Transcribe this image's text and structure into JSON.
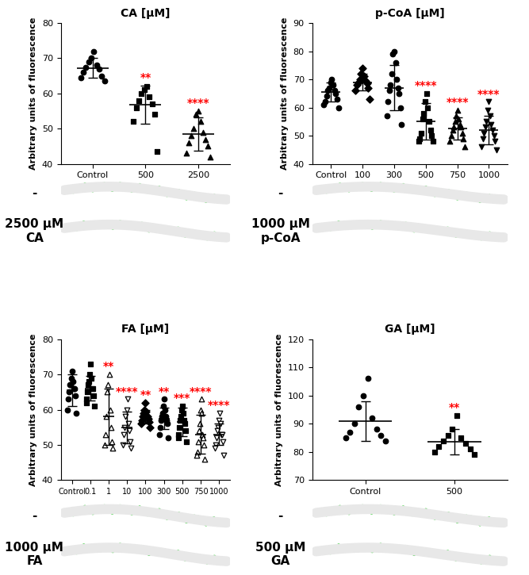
{
  "chart_data": [
    {
      "type": "scatter",
      "title": "CA [μM]",
      "y_label": "Arbitrary units of fluorescence",
      "ylim": [
        40,
        80
      ],
      "yticks": [
        40,
        50,
        60,
        70,
        80
      ],
      "image_labels": [
        "-",
        "2500 μM\nCA"
      ],
      "groups": [
        {
          "name": "Control",
          "marker": "circle",
          "points": [
            72,
            70,
            69,
            68,
            67.5,
            67,
            66,
            65,
            64.5,
            63.5
          ],
          "mean": 67.2,
          "sd": 2.8
        },
        {
          "name": "500",
          "marker": "square",
          "points": [
            62,
            61,
            60,
            59,
            58,
            57,
            56,
            54,
            52,
            43.5
          ],
          "mean": 56.8,
          "sd": 5.5,
          "significance": "**"
        },
        {
          "name": "2500",
          "marker": "triangle_up",
          "points": [
            55,
            54,
            52,
            50,
            49,
            48,
            47,
            46,
            45,
            43,
            42
          ],
          "mean": 48.5,
          "sd": 4.8,
          "significance": "****"
        }
      ]
    },
    {
      "type": "scatter",
      "title": "p-CoA [μM]",
      "y_label": "Arbitrary units of fluorescence",
      "ylim": [
        40,
        90
      ],
      "yticks": [
        40,
        50,
        60,
        70,
        80,
        90
      ],
      "image_labels": [
        "-",
        "1000 μM\np-CoA"
      ],
      "groups": [
        {
          "name": "Control",
          "marker": "circle",
          "points": [
            70,
            69,
            68,
            67,
            66,
            66,
            65,
            64,
            63,
            62,
            61,
            60
          ],
          "mean": 65.5,
          "sd": 3.5
        },
        {
          "name": "100",
          "marker": "diamond",
          "points": [
            74,
            72,
            71,
            70,
            69.5,
            69,
            68.5,
            68,
            67,
            66,
            63
          ],
          "mean": 69,
          "sd": 3
        },
        {
          "name": "300",
          "marker": "circle",
          "points": [
            80,
            79,
            76,
            72,
            70,
            68,
            67,
            66,
            65,
            62,
            60,
            57,
            54
          ],
          "mean": 67,
          "sd": 8
        },
        {
          "name": "500",
          "marker": "square",
          "points": [
            65,
            62,
            60,
            58,
            56,
            55,
            52,
            51,
            50,
            49,
            48,
            48
          ],
          "mean": 55,
          "sd": 6.5,
          "significance": "****"
        },
        {
          "name": "750",
          "marker": "triangle_up",
          "points": [
            59,
            57,
            56,
            55,
            54,
            53,
            53,
            52,
            51,
            50,
            49,
            48,
            46
          ],
          "mean": 52.5,
          "sd": 4,
          "significance": "****"
        },
        {
          "name": "1000",
          "marker": "triangle_down",
          "points": [
            62,
            59,
            57,
            55,
            54,
            53,
            52,
            51,
            50,
            49,
            48,
            46,
            45
          ],
          "mean": 52,
          "sd": 5,
          "significance": "****"
        }
      ]
    },
    {
      "type": "scatter",
      "title": "FA [μM]",
      "y_label": "Arbitrary units of fluorescence",
      "ylim": [
        40,
        80
      ],
      "yticks": [
        40,
        50,
        60,
        70,
        80
      ],
      "image_labels": [
        "-",
        "1000 μM\nFA"
      ],
      "groups": [
        {
          "name": "Control",
          "marker": "circle",
          "points": [
            71,
            69,
            68,
            67,
            67,
            66,
            66,
            65,
            64,
            63,
            60,
            59
          ],
          "mean": 65.5,
          "sd": 4.5
        },
        {
          "name": "0.1",
          "marker": "square",
          "points": [
            73,
            70,
            69,
            68,
            67,
            66,
            66,
            65,
            64,
            63,
            62,
            61
          ],
          "mean": 66,
          "sd": 3.5
        },
        {
          "name": "1",
          "marker": "triangle_up_open",
          "points": [
            70,
            67,
            65,
            60,
            58,
            55,
            53,
            51,
            50,
            49
          ],
          "mean": 58,
          "sd": 8,
          "significance": "**"
        },
        {
          "name": "10",
          "marker": "triangle_down_open",
          "points": [
            63,
            60,
            58,
            56,
            55,
            54,
            53,
            51,
            50,
            49
          ],
          "mean": 55,
          "sd": 4.5,
          "significance": "****"
        },
        {
          "name": "100",
          "marker": "diamond",
          "points": [
            62,
            60,
            59.5,
            59,
            58,
            58,
            57.5,
            57,
            56.5,
            56,
            55
          ],
          "mean": 58,
          "sd": 2,
          "significance": "**"
        },
        {
          "name": "300",
          "marker": "circle",
          "points": [
            63,
            61,
            60,
            59,
            58,
            58,
            57,
            57,
            56,
            55,
            53,
            52
          ],
          "mean": 57.5,
          "sd": 3,
          "significance": "**"
        },
        {
          "name": "500",
          "marker": "square",
          "points": [
            61,
            60,
            59,
            58,
            57,
            57,
            56,
            55,
            54,
            53,
            52,
            51
          ],
          "mean": 56.5,
          "sd": 4,
          "significance": "***"
        },
        {
          "name": "750",
          "marker": "triangle_up_open",
          "points": [
            63,
            60,
            59,
            56,
            54,
            53,
            52,
            51,
            50,
            48,
            47,
            46
          ],
          "mean": 53,
          "sd": 5.5,
          "significance": "****"
        },
        {
          "name": "1000",
          "marker": "triangle_down_open",
          "points": [
            59,
            57,
            56,
            55,
            54,
            53,
            53,
            52,
            51,
            50,
            49,
            47
          ],
          "mean": 53,
          "sd": 3,
          "significance": "****"
        }
      ]
    },
    {
      "type": "scatter",
      "title": "GA [μM]",
      "y_label": "Arbitrary units of fluorescence",
      "ylim": [
        70,
        120
      ],
      "yticks": [
        70,
        80,
        90,
        100,
        110,
        120
      ],
      "image_labels": [
        "-",
        "500 μM\nGA"
      ],
      "groups": [
        {
          "name": "Control",
          "marker": "circle",
          "points": [
            106,
            100,
            96,
            92,
            90,
            88,
            87,
            86,
            85,
            84
          ],
          "mean": 91,
          "sd": 7
        },
        {
          "name": "500",
          "marker": "square",
          "points": [
            93,
            88,
            86,
            85,
            84,
            83,
            82,
            81,
            80,
            79
          ],
          "mean": 83.5,
          "sd": 4.5,
          "significance": "**"
        }
      ]
    }
  ]
}
